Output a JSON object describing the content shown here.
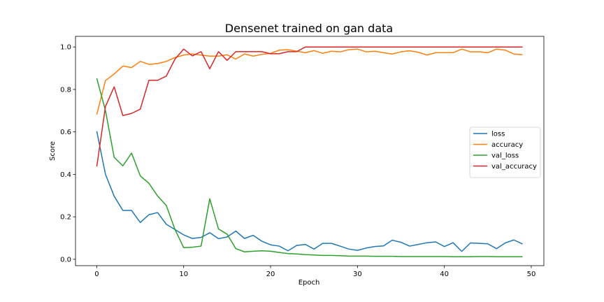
{
  "chart_data": {
    "type": "line",
    "title": "Densenet trained on gan data",
    "xlabel": "Epoch",
    "ylabel": "Score",
    "xlim": [
      -2.45,
      51.45
    ],
    "ylim": [
      -0.03,
      1.05
    ],
    "xticks": [
      0,
      10,
      20,
      30,
      40,
      50
    ],
    "yticks": [
      0.0,
      0.2,
      0.4,
      0.6,
      0.8,
      1.0
    ],
    "xtick_labels": [
      "0",
      "10",
      "20",
      "30",
      "40",
      "50"
    ],
    "ytick_labels": [
      "0.0",
      "0.2",
      "0.4",
      "0.6",
      "0.8",
      "1.0"
    ],
    "grid": false,
    "legend_position": "center-right",
    "x": [
      0,
      1,
      2,
      3,
      4,
      5,
      6,
      7,
      8,
      9,
      10,
      11,
      12,
      13,
      14,
      15,
      16,
      17,
      18,
      19,
      20,
      21,
      22,
      23,
      24,
      25,
      26,
      27,
      28,
      29,
      30,
      31,
      32,
      33,
      34,
      35,
      36,
      37,
      38,
      39,
      40,
      41,
      42,
      43,
      44,
      45,
      46,
      47,
      48,
      49
    ],
    "series": [
      {
        "name": "loss",
        "color": "#1f77b4",
        "values": [
          0.603,
          0.4,
          0.297,
          0.23,
          0.23,
          0.173,
          0.21,
          0.22,
          0.165,
          0.14,
          0.115,
          0.098,
          0.103,
          0.125,
          0.097,
          0.105,
          0.133,
          0.098,
          0.113,
          0.085,
          0.068,
          0.062,
          0.04,
          0.065,
          0.07,
          0.048,
          0.075,
          0.075,
          0.062,
          0.048,
          0.042,
          0.053,
          0.06,
          0.063,
          0.09,
          0.08,
          0.062,
          0.07,
          0.078,
          0.082,
          0.06,
          0.078,
          0.037,
          0.077,
          0.075,
          0.073,
          0.05,
          0.077,
          0.091,
          0.072
        ]
      },
      {
        "name": "accuracy",
        "color": "#ff7f0e",
        "values": [
          0.682,
          0.842,
          0.873,
          0.91,
          0.903,
          0.932,
          0.918,
          0.922,
          0.932,
          0.95,
          0.962,
          0.967,
          0.962,
          0.957,
          0.957,
          0.963,
          0.943,
          0.967,
          0.957,
          0.965,
          0.97,
          0.985,
          0.987,
          0.98,
          0.973,
          0.983,
          0.97,
          0.98,
          0.977,
          0.987,
          0.99,
          0.977,
          0.98,
          0.973,
          0.967,
          0.977,
          0.982,
          0.975,
          0.962,
          0.973,
          0.973,
          0.973,
          0.99,
          0.977,
          0.977,
          0.973,
          0.99,
          0.985,
          0.967,
          0.963
        ]
      },
      {
        "name": "val_loss",
        "color": "#2ca02c",
        "values": [
          0.852,
          0.7,
          0.48,
          0.44,
          0.5,
          0.393,
          0.358,
          0.298,
          0.253,
          0.14,
          0.055,
          0.057,
          0.062,
          0.285,
          0.143,
          0.118,
          0.05,
          0.035,
          0.038,
          0.04,
          0.038,
          0.032,
          0.027,
          0.025,
          0.022,
          0.02,
          0.018,
          0.018,
          0.017,
          0.015,
          0.015,
          0.015,
          0.014,
          0.014,
          0.014,
          0.013,
          0.013,
          0.013,
          0.013,
          0.013,
          0.013,
          0.012,
          0.012,
          0.012,
          0.013,
          0.013,
          0.012,
          0.012,
          0.012,
          0.012
        ]
      },
      {
        "name": "val_accuracy",
        "color": "#d62728",
        "values": [
          0.437,
          0.72,
          0.812,
          0.677,
          0.687,
          0.707,
          0.843,
          0.843,
          0.863,
          0.943,
          0.99,
          0.958,
          0.978,
          0.897,
          0.978,
          0.937,
          0.978,
          0.978,
          0.978,
          0.978,
          0.968,
          0.968,
          0.978,
          0.978,
          1.0,
          1.0,
          1.0,
          1.0,
          1.0,
          1.0,
          1.0,
          1.0,
          1.0,
          1.0,
          1.0,
          1.0,
          1.0,
          1.0,
          1.0,
          1.0,
          1.0,
          1.0,
          1.0,
          1.0,
          1.0,
          1.0,
          1.0,
          1.0,
          1.0,
          1.0
        ]
      }
    ]
  }
}
